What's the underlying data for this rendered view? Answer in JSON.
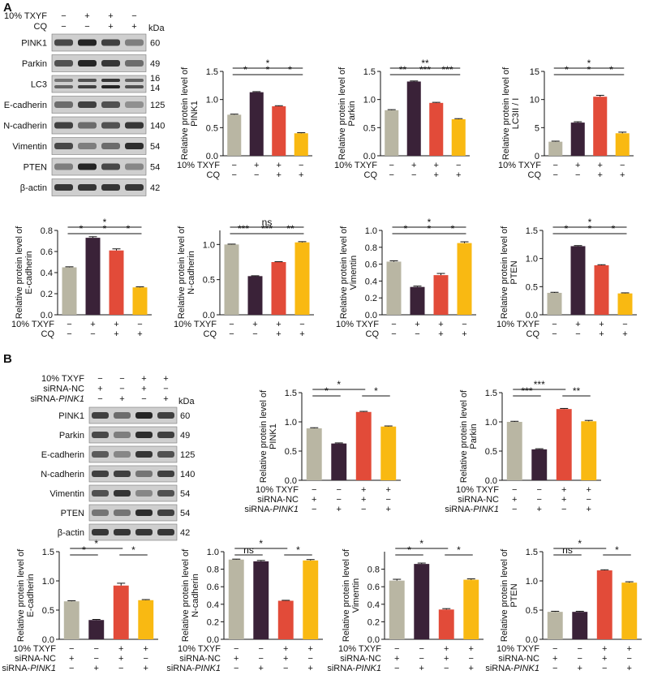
{
  "panel_labels": [
    "A",
    "B"
  ],
  "colors": {
    "bar": [
      "#b9b6a3",
      "#3a2238",
      "#e24b39",
      "#f9b912"
    ],
    "axis": "#111111",
    "band": "#1b1b1b",
    "membrane": "#cfcfcf"
  },
  "blots": [
    {
      "conditions": [
        {
          "label": "10% TXYF",
          "marks": [
            "−",
            "+",
            "+",
            "−"
          ]
        },
        {
          "label": "CQ",
          "marks": [
            "−",
            "−",
            "+",
            "+"
          ]
        }
      ],
      "kda_header": "kDa",
      "proteins": [
        {
          "name": "PINK1",
          "kda": [
            "60"
          ],
          "intensity": [
            0.75,
            0.95,
            0.8,
            0.45
          ]
        },
        {
          "name": "Parkin",
          "kda": [
            "49"
          ],
          "intensity": [
            0.7,
            0.95,
            0.85,
            0.55
          ]
        },
        {
          "name": "LC3",
          "kda": [
            "16",
            "14"
          ],
          "intensity": [
            0.5,
            0.7,
            0.85,
            0.6
          ]
        },
        {
          "name": "E-cadherin",
          "kda": [
            "125"
          ],
          "intensity": [
            0.55,
            0.8,
            0.7,
            0.35
          ]
        },
        {
          "name": "N-cadherin",
          "kda": [
            "140"
          ],
          "intensity": [
            0.8,
            0.55,
            0.7,
            0.85
          ]
        },
        {
          "name": "Vimentin",
          "kda": [
            "54"
          ],
          "intensity": [
            0.75,
            0.45,
            0.55,
            0.9
          ]
        },
        {
          "name": "PTEN",
          "kda": [
            "54"
          ],
          "intensity": [
            0.45,
            0.95,
            0.75,
            0.4
          ]
        },
        {
          "name": "β-actin",
          "kda": [
            "42"
          ],
          "intensity": [
            0.85,
            0.85,
            0.85,
            0.85
          ]
        }
      ]
    },
    {
      "conditions": [
        {
          "label": "10% TXYF",
          "marks": [
            "−",
            "−",
            "+",
            "+"
          ]
        },
        {
          "label": "siRNA-NC",
          "marks": [
            "+",
            "−",
            "+",
            "−"
          ]
        },
        {
          "label": "siRNA-PINK1",
          "marks": [
            "−",
            "+",
            "−",
            "+"
          ]
        }
      ],
      "kda_header": "kDa",
      "proteins": [
        {
          "name": "PINK1",
          "kda": [
            "60"
          ],
          "intensity": [
            0.8,
            0.55,
            0.95,
            0.8
          ]
        },
        {
          "name": "Parkin",
          "kda": [
            "49"
          ],
          "intensity": [
            0.75,
            0.45,
            0.9,
            0.8
          ]
        },
        {
          "name": "E-cadherin",
          "kda": [
            "125"
          ],
          "intensity": [
            0.65,
            0.4,
            0.85,
            0.7
          ]
        },
        {
          "name": "N-cadherin",
          "kda": [
            "140"
          ],
          "intensity": [
            0.8,
            0.8,
            0.5,
            0.8
          ]
        },
        {
          "name": "Vimentin",
          "kda": [
            "54"
          ],
          "intensity": [
            0.7,
            0.85,
            0.4,
            0.7
          ]
        },
        {
          "name": "PTEN",
          "kda": [
            "54"
          ],
          "intensity": [
            0.5,
            0.5,
            0.9,
            0.8
          ]
        },
        {
          "name": "β-actin",
          "kda": [
            "42"
          ],
          "intensity": [
            0.85,
            0.85,
            0.85,
            0.85
          ]
        }
      ]
    }
  ],
  "chart_data": [
    {
      "type": "bar",
      "ylabel": [
        "Relative protein level of",
        "PINK1"
      ],
      "ylim": [
        0,
        1.5
      ],
      "yticks": [
        "0.0",
        "0.5",
        "1.0",
        "1.5"
      ],
      "values": [
        0.73,
        1.13,
        0.88,
        0.4
      ],
      "errors": [
        0.01,
        0.01,
        0.01,
        0.01
      ],
      "conditions": [
        {
          "label": "10% TXYF",
          "marks": [
            "−",
            "+",
            "+",
            "−"
          ]
        },
        {
          "label": "CQ",
          "marks": [
            "−",
            "−",
            "+",
            "+"
          ]
        }
      ],
      "comparisons": [
        {
          "from": 0,
          "to": 3,
          "label": "*"
        },
        {
          "from": 0,
          "to": 1,
          "label": "*"
        },
        {
          "from": 1,
          "to": 2,
          "label": "*"
        },
        {
          "from": 2,
          "to": 3,
          "label": "*"
        }
      ]
    },
    {
      "type": "bar",
      "ylabel": [
        "Relative protein level of",
        "Parkin"
      ],
      "ylim": [
        0,
        1.5
      ],
      "yticks": [
        "0.0",
        "0.5",
        "1.0",
        "1.5"
      ],
      "values": [
        0.81,
        1.32,
        0.94,
        0.65
      ],
      "errors": [
        0.01,
        0.01,
        0.01,
        0.01
      ],
      "conditions": [
        {
          "label": "10% TXYF",
          "marks": [
            "−",
            "+",
            "+",
            "−"
          ]
        },
        {
          "label": "CQ",
          "marks": [
            "−",
            "−",
            "+",
            "+"
          ]
        }
      ],
      "comparisons": [
        {
          "from": 0,
          "to": 3,
          "label": "**"
        },
        {
          "from": 0,
          "to": 1,
          "label": "**"
        },
        {
          "from": 1,
          "to": 2,
          "label": "***"
        },
        {
          "from": 2,
          "to": 3,
          "label": "***"
        }
      ]
    },
    {
      "type": "bar",
      "ylabel": [
        "Relative protein level of",
        "LC3II / I"
      ],
      "ylim": [
        0,
        15
      ],
      "yticks": [
        "0",
        "5",
        "10",
        "15"
      ],
      "values": [
        2.5,
        5.9,
        10.5,
        4.0
      ],
      "errors": [
        0.1,
        0.15,
        0.25,
        0.2
      ],
      "conditions": [
        {
          "label": "10% TXYF",
          "marks": [
            "−",
            "+",
            "+",
            "−"
          ]
        },
        {
          "label": "CQ",
          "marks": [
            "−",
            "−",
            "+",
            "+"
          ]
        }
      ],
      "comparisons": [
        {
          "from": 0,
          "to": 3,
          "label": "*"
        },
        {
          "from": 0,
          "to": 1,
          "label": "*"
        },
        {
          "from": 1,
          "to": 2,
          "label": "*"
        },
        {
          "from": 2,
          "to": 3,
          "label": "*"
        }
      ]
    },
    {
      "type": "bar",
      "ylabel": [
        "Relative protein level of",
        "E-cadherin"
      ],
      "ylim": [
        0,
        0.8
      ],
      "yticks": [
        "0.0",
        "0.2",
        "0.4",
        "0.6",
        "0.8"
      ],
      "values": [
        0.45,
        0.73,
        0.61,
        0.26
      ],
      "errors": [
        0.005,
        0.01,
        0.015,
        0.005
      ],
      "conditions": [
        {
          "label": "10% TXYF",
          "marks": [
            "−",
            "+",
            "+",
            "−"
          ]
        },
        {
          "label": "CQ",
          "marks": [
            "−",
            "−",
            "+",
            "+"
          ]
        }
      ],
      "comparisons": [
        {
          "from": 0,
          "to": 3,
          "label": "*"
        },
        {
          "from": 0,
          "to": 1,
          "label": "*"
        },
        {
          "from": 1,
          "to": 2,
          "label": "*"
        },
        {
          "from": 2,
          "to": 3,
          "label": "*"
        }
      ]
    },
    {
      "type": "bar",
      "ylabel": [
        "Relative protein level of",
        "N-cadherin"
      ],
      "ylim": [
        0,
        1.2
      ],
      "yticks": [
        "0.0",
        "0.5",
        "1.0"
      ],
      "values": [
        1.0,
        0.55,
        0.75,
        1.03
      ],
      "errors": [
        0.005,
        0.005,
        0.005,
        0.01
      ],
      "conditions": [
        {
          "label": "10% TXYF",
          "marks": [
            "−",
            "+",
            "+",
            "−"
          ]
        },
        {
          "label": "CQ",
          "marks": [
            "−",
            "−",
            "+",
            "+"
          ]
        }
      ],
      "comparisons": [
        {
          "from": 0,
          "to": 3,
          "label": "ns"
        },
        {
          "from": 0,
          "to": 1,
          "label": "***"
        },
        {
          "from": 1,
          "to": 2,
          "label": "***"
        },
        {
          "from": 2,
          "to": 3,
          "label": "**"
        }
      ]
    },
    {
      "type": "bar",
      "ylabel": [
        "Relative protein level of",
        "Vimentin"
      ],
      "ylim": [
        0,
        1.0
      ],
      "yticks": [
        "0.0",
        "0.2",
        "0.4",
        "0.6",
        "0.8",
        "1.0"
      ],
      "values": [
        0.63,
        0.33,
        0.47,
        0.85
      ],
      "errors": [
        0.01,
        0.01,
        0.02,
        0.015
      ],
      "conditions": [
        {
          "label": "10% TXYF",
          "marks": [
            "−",
            "+",
            "+",
            "−"
          ]
        },
        {
          "label": "CQ",
          "marks": [
            "−",
            "−",
            "+",
            "+"
          ]
        }
      ],
      "comparisons": [
        {
          "from": 0,
          "to": 3,
          "label": "*"
        },
        {
          "from": 0,
          "to": 1,
          "label": "*"
        },
        {
          "from": 1,
          "to": 2,
          "label": "*"
        },
        {
          "from": 2,
          "to": 3,
          "label": "*"
        }
      ]
    },
    {
      "type": "bar",
      "ylabel": [
        "Relative protein level of",
        "PTEN"
      ],
      "ylim": [
        0,
        1.5
      ],
      "yticks": [
        "0.0",
        "0.5",
        "1.0",
        "1.5"
      ],
      "values": [
        0.39,
        1.22,
        0.88,
        0.38
      ],
      "errors": [
        0.01,
        0.01,
        0.01,
        0.01
      ],
      "conditions": [
        {
          "label": "10% TXYF",
          "marks": [
            "−",
            "+",
            "+",
            "−"
          ]
        },
        {
          "label": "CQ",
          "marks": [
            "−",
            "−",
            "+",
            "+"
          ]
        }
      ],
      "comparisons": [
        {
          "from": 0,
          "to": 3,
          "label": "*"
        },
        {
          "from": 0,
          "to": 1,
          "label": "*"
        },
        {
          "from": 1,
          "to": 2,
          "label": "*"
        },
        {
          "from": 2,
          "to": 3,
          "label": "*"
        }
      ]
    },
    {
      "type": "bar",
      "ylabel": [
        "Relative protein level of",
        "PINK1"
      ],
      "ylim": [
        0,
        1.5
      ],
      "yticks": [
        "0.0",
        "0.5",
        "1.0",
        "1.5"
      ],
      "values": [
        0.89,
        0.63,
        1.17,
        0.92
      ],
      "errors": [
        0.01,
        0.01,
        0.01,
        0.01
      ],
      "conditions": [
        {
          "label": "10% TXYF",
          "marks": [
            "−",
            "−",
            "+",
            "+"
          ]
        },
        {
          "label": "siRNA-NC",
          "marks": [
            "+",
            "−",
            "+",
            "−"
          ]
        },
        {
          "label": "siRNA-PINK1",
          "marks": [
            "−",
            "+",
            "−",
            "+"
          ]
        }
      ],
      "comparisons": [
        {
          "from": 0,
          "to": 2,
          "label": "*"
        },
        {
          "from": 0,
          "to": 1,
          "label": "*"
        },
        {
          "from": 2,
          "to": 3,
          "label": "*"
        }
      ]
    },
    {
      "type": "bar",
      "ylabel": [
        "Relative protein level of",
        "Parkin"
      ],
      "ylim": [
        0,
        1.5
      ],
      "yticks": [
        "0.0",
        "0.5",
        "1.0",
        "1.5"
      ],
      "values": [
        1.0,
        0.53,
        1.22,
        1.01
      ],
      "errors": [
        0.01,
        0.01,
        0.01,
        0.015
      ],
      "conditions": [
        {
          "label": "10% TXYF",
          "marks": [
            "−",
            "−",
            "+",
            "+"
          ]
        },
        {
          "label": "siRNA-NC",
          "marks": [
            "+",
            "−",
            "+",
            "−"
          ]
        },
        {
          "label": "siRNA-PINK1",
          "marks": [
            "−",
            "+",
            "−",
            "+"
          ]
        }
      ],
      "comparisons": [
        {
          "from": 0,
          "to": 2,
          "label": "***"
        },
        {
          "from": 0,
          "to": 1,
          "label": "***"
        },
        {
          "from": 2,
          "to": 3,
          "label": "**"
        }
      ]
    },
    {
      "type": "bar",
      "ylabel": [
        "Relative protein level of",
        "E-cadherin"
      ],
      "ylim": [
        0,
        1.5
      ],
      "yticks": [
        "0.0",
        "0.5",
        "1.0",
        "1.5"
      ],
      "values": [
        0.65,
        0.33,
        0.92,
        0.67
      ],
      "errors": [
        0.01,
        0.01,
        0.04,
        0.01
      ],
      "conditions": [
        {
          "label": "10% TXYF",
          "marks": [
            "−",
            "−",
            "+",
            "+"
          ]
        },
        {
          "label": "siRNA-NC",
          "marks": [
            "+",
            "−",
            "+",
            "−"
          ]
        },
        {
          "label": "siRNA-PINK1",
          "marks": [
            "−",
            "+",
            "−",
            "+"
          ]
        }
      ],
      "comparisons": [
        {
          "from": 0,
          "to": 2,
          "label": "*"
        },
        {
          "from": 0,
          "to": 1,
          "label": "*"
        },
        {
          "from": 2,
          "to": 3,
          "label": "*"
        }
      ]
    },
    {
      "type": "bar",
      "ylabel": [
        "Relative protein level of",
        "N-cadherin"
      ],
      "ylim": [
        0,
        1.0
      ],
      "yticks": [
        "0.0",
        "0.2",
        "0.4",
        "0.6",
        "0.8",
        "1.0"
      ],
      "values": [
        0.91,
        0.89,
        0.44,
        0.9
      ],
      "errors": [
        0.005,
        0.01,
        0.005,
        0.01
      ],
      "conditions": [
        {
          "label": "10% TXYF",
          "marks": [
            "−",
            "−",
            "+",
            "+"
          ]
        },
        {
          "label": "siRNA-NC",
          "marks": [
            "+",
            "−",
            "+",
            "−"
          ]
        },
        {
          "label": "siRNA-PINK1",
          "marks": [
            "−",
            "+",
            "−",
            "+"
          ]
        }
      ],
      "comparisons": [
        {
          "from": 0,
          "to": 2,
          "label": "*"
        },
        {
          "from": 0,
          "to": 1,
          "label": "ns"
        },
        {
          "from": 2,
          "to": 3,
          "label": "*"
        }
      ]
    },
    {
      "type": "bar",
      "ylabel": [
        "Relative protein level of",
        "Vimentin"
      ],
      "ylim": [
        0,
        1.0
      ],
      "yticks": [
        "0.0",
        "0.2",
        "0.4",
        "0.6",
        "0.8"
      ],
      "values": [
        0.67,
        0.86,
        0.34,
        0.68
      ],
      "errors": [
        0.015,
        0.01,
        0.01,
        0.01
      ],
      "conditions": [
        {
          "label": "10% TXYF",
          "marks": [
            "−",
            "−",
            "+",
            "+"
          ]
        },
        {
          "label": "siRNA-NC",
          "marks": [
            "+",
            "−",
            "+",
            "−"
          ]
        },
        {
          "label": "siRNA-PINK1",
          "marks": [
            "−",
            "+",
            "−",
            "+"
          ]
        }
      ],
      "comparisons": [
        {
          "from": 0,
          "to": 2,
          "label": "*"
        },
        {
          "from": 0,
          "to": 1,
          "label": "*"
        },
        {
          "from": 2,
          "to": 3,
          "label": "*"
        }
      ]
    },
    {
      "type": "bar",
      "ylabel": [
        "Relative protein level of",
        "PTEN"
      ],
      "ylim": [
        0,
        1.5
      ],
      "yticks": [
        "0.0",
        "0.5",
        "1.0",
        "1.5"
      ],
      "values": [
        0.47,
        0.47,
        1.18,
        0.97
      ],
      "errors": [
        0.01,
        0.01,
        0.01,
        0.015
      ],
      "conditions": [
        {
          "label": "10% TXYF",
          "marks": [
            "−",
            "−",
            "+",
            "+"
          ]
        },
        {
          "label": "siRNA-NC",
          "marks": [
            "+",
            "−",
            "+",
            "−"
          ]
        },
        {
          "label": "siRNA-PINK1",
          "marks": [
            "−",
            "+",
            "−",
            "+"
          ]
        }
      ],
      "comparisons": [
        {
          "from": 0,
          "to": 2,
          "label": "*"
        },
        {
          "from": 0,
          "to": 1,
          "label": "ns"
        },
        {
          "from": 2,
          "to": 3,
          "label": "*"
        }
      ]
    }
  ]
}
